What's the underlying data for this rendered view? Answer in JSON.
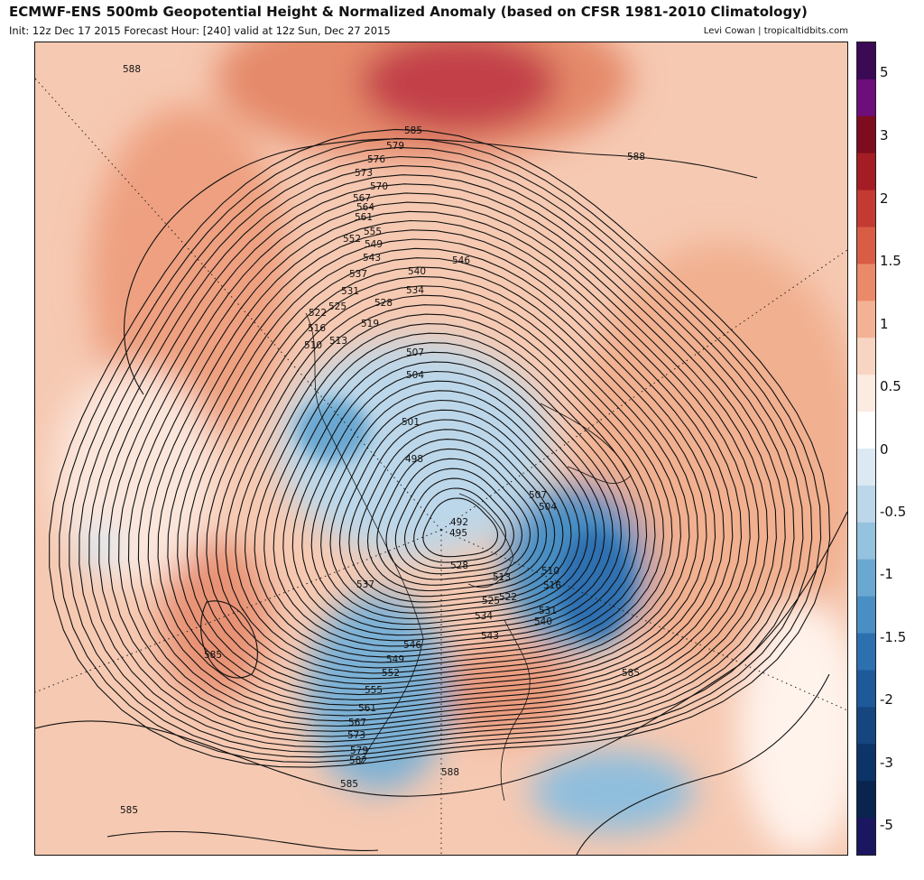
{
  "header": {
    "title": "ECMWF-ENS 500mb Geopotential Height & Normalized Anomaly (based on CFSR 1981-2010 Climatology)",
    "subtitle": "Init: 12z Dec 17 2015   Forecast Hour: [240]   valid at 12z Sun, Dec 27 2015",
    "credit": "Levi Cowan | tropicaltidbits.com"
  },
  "colorbar": {
    "labels": [
      "5",
      "3",
      "2",
      "1.5",
      "1",
      "0.5",
      "0",
      "-0.5",
      "-1",
      "-1.5",
      "-2",
      "-3",
      "-5"
    ],
    "colors": [
      "#3a0a55",
      "#6d0e7a",
      "#7d0d1e",
      "#a51d24",
      "#c33a32",
      "#d95c45",
      "#ea8a68",
      "#f3b293",
      "#f8d5c2",
      "#fbebe1",
      "#ffffff",
      "#dde9f2",
      "#bcd7e9",
      "#95c2de",
      "#6ba8d1",
      "#4a8fc4",
      "#2d70b0",
      "#1e5a9a",
      "#154680",
      "#0d3468",
      "#0a2450",
      "#1a1760"
    ]
  },
  "map": {
    "contour_labels": [
      "588",
      "585",
      "579",
      "576",
      "573",
      "570",
      "567",
      "564",
      "561",
      "555",
      "552",
      "549",
      "543",
      "540",
      "546",
      "537",
      "534",
      "531",
      "528",
      "525",
      "522",
      "519",
      "516",
      "513",
      "510",
      "507",
      "504",
      "501",
      "498",
      "495",
      "492",
      "588",
      "507",
      "504",
      "510",
      "513",
      "516",
      "522",
      "525",
      "531",
      "534",
      "540",
      "543",
      "528",
      "537",
      "546",
      "549",
      "552",
      "555",
      "561",
      "567",
      "573",
      "579",
      "582",
      "585",
      "588",
      "585",
      "585",
      "585"
    ]
  }
}
